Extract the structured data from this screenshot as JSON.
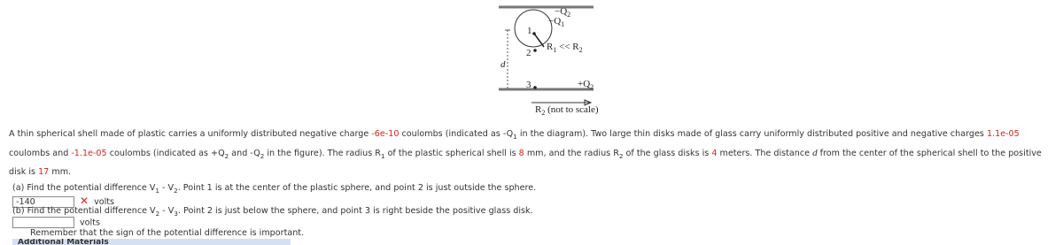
{
  "diagram": {
    "top_charge": [
      "−Q",
      "2"
    ],
    "sphere_charge": [
      "−Q",
      "1"
    ],
    "point_1": "1",
    "point_2": "2",
    "ratio": [
      "R",
      "1",
      " << R",
      "2"
    ],
    "distance": "d",
    "point_3": "3",
    "bottom_charge": [
      "+Q",
      "2"
    ],
    "radius_note": [
      "R",
      "2",
      " (not to scale)"
    ]
  },
  "problem": {
    "segments": [
      "A thin spherical shell made of plastic carries a uniformly distributed negative charge ",
      "-6e-10",
      " coulombs (indicated as -Q",
      "1",
      " in the diagram). Two large thin disks made of glass carry uniformly distributed positive and negative charges ",
      "1.1e-05",
      " coulombs and ",
      "-1.1e-05",
      " coulombs (indicated as +Q",
      "2",
      " and -Q",
      "2",
      " in the figure). The radius R",
      "1",
      " of the plastic spherical shell is ",
      "8",
      " mm, and the radius R",
      "2",
      " of the glass disks is ",
      "4",
      " meters. The distance ",
      "d",
      " from the center of the spherical shell to the positive disk is ",
      "17",
      " mm."
    ]
  },
  "part_a": {
    "segments": [
      "(a) Find the potential difference V",
      "1",
      " - V",
      "2",
      ". Point 1 is at the center of the plastic sphere, and point 2 is just outside the sphere."
    ],
    "answer": "-140",
    "unit": "volts"
  },
  "part_b": {
    "segments": [
      "(b) Find the potential difference V",
      "2",
      " - V",
      "3",
      ". Point 2 is just below the sphere, and point 3 is right beside the positive glass disk."
    ],
    "unit": "volts"
  },
  "note": "Remember that the sign of the potential difference is important.",
  "additional": "Additional Materials"
}
